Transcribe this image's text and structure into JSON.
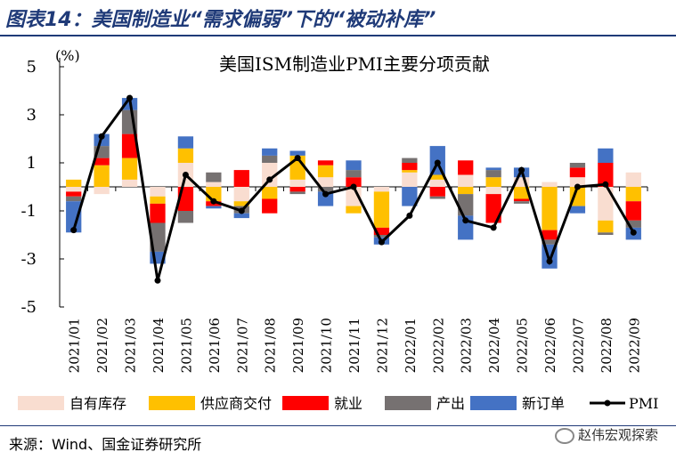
{
  "header": {
    "title": "图表14：美国制造业“需求偏弱”下的“被动补库”"
  },
  "source": "来源：Wind、国金证券研究所",
  "watermark": "赵伟宏观探索",
  "chart_data": {
    "type": "bar",
    "stacked": true,
    "title": "美国ISM制造业PMI主要分项贡献",
    "ylabel": "(%)",
    "ylim": [
      -5,
      5
    ],
    "yticks": [
      5,
      3,
      1,
      -1,
      -3,
      -5
    ],
    "grid": false,
    "legend_position": "bottom",
    "categories": [
      "2021/01",
      "2021/02",
      "2021/03",
      "2021/04",
      "2021/05",
      "2021/06",
      "2021/07",
      "2021/08",
      "2021/09",
      "2021/10",
      "2021/11",
      "2021/12",
      "2022/01",
      "2022/02",
      "2022/03",
      "2022/04",
      "2022/05",
      "2022/06",
      "2022/07",
      "2022/08",
      "2022/09"
    ],
    "series": [
      {
        "name": "自有库存",
        "type": "bar",
        "color": "#f9ddd0",
        "values": [
          -0.2,
          -0.3,
          0.3,
          -0.4,
          1.0,
          0.2,
          -0.6,
          1.0,
          0.3,
          0.4,
          -0.8,
          -0.2,
          0.6,
          0.3,
          0.5,
          -0.3,
          0.4,
          0.2,
          0.4,
          -1.4,
          0.6
        ]
      },
      {
        "name": "供应商交付",
        "type": "bar",
        "color": "#ffc000",
        "values": [
          0.3,
          0.9,
          0.9,
          -0.3,
          0.6,
          -0.6,
          -0.2,
          -0.5,
          1.0,
          0.5,
          -0.3,
          -1.5,
          0.1,
          0.2,
          -0.3,
          0.4,
          -0.5,
          -1.8,
          -0.8,
          -0.5,
          -0.6
        ]
      },
      {
        "name": "就业",
        "type": "bar",
        "color": "#ff0000",
        "values": [
          -0.2,
          0.3,
          1.0,
          -0.8,
          -1.0,
          -0.2,
          0.7,
          -0.6,
          -0.2,
          0.2,
          0.4,
          -0.3,
          0.3,
          -0.4,
          0.6,
          -1.2,
          -0.1,
          -0.4,
          0.4,
          1.0,
          -0.8
        ]
      },
      {
        "name": "产出",
        "type": "bar",
        "color": "#767171",
        "values": [
          -0.2,
          0.5,
          1.0,
          -1.2,
          -0.5,
          0.4,
          -0.3,
          0.3,
          -0.1,
          -0.2,
          0.3,
          -0.1,
          0.2,
          -0.1,
          -0.9,
          0.3,
          -0.1,
          -0.2,
          0.2,
          -0.1,
          -0.3
        ]
      },
      {
        "name": "新订单",
        "type": "bar",
        "color": "#4472c4",
        "values": [
          -1.3,
          0.5,
          0.5,
          -0.5,
          0.5,
          -0.1,
          -0.2,
          0.3,
          0.2,
          -0.6,
          0.4,
          -0.3,
          -0.8,
          1.2,
          -1.0,
          0.1,
          0.4,
          -1.0,
          -0.3,
          0.6,
          -0.5
        ]
      },
      {
        "name": "PMI",
        "type": "line",
        "color": "#000000",
        "values": [
          -1.8,
          2.1,
          3.7,
          -3.9,
          0.5,
          -0.6,
          -1.0,
          0.3,
          1.2,
          -0.3,
          0.0,
          -2.3,
          -1.2,
          1.0,
          -1.4,
          -1.7,
          0.7,
          -3.1,
          0.0,
          0.1,
          -1.9
        ]
      }
    ]
  }
}
